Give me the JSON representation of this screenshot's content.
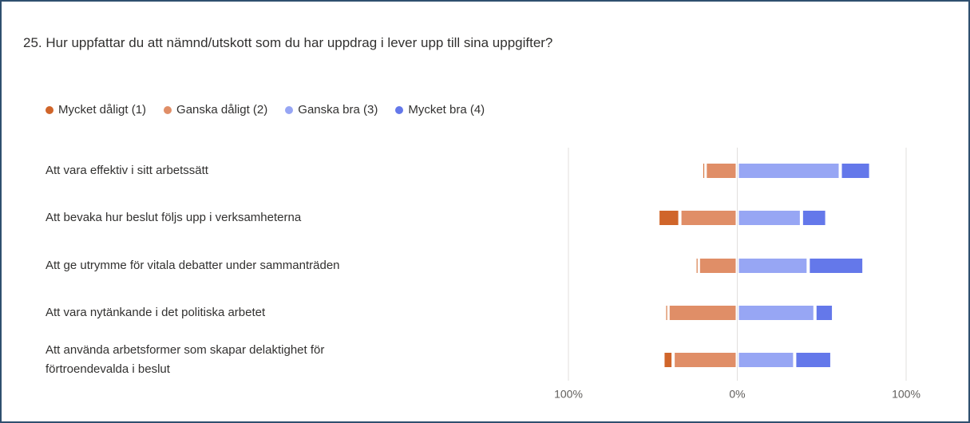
{
  "chart_data": {
    "type": "diverging-bar",
    "title": "25. Hur uppfattar du att nämnd/utskott som du har uppdrag i lever upp till sina uppgifter?",
    "categories": [
      "Att vara effektiv i sitt arbetssätt",
      "Att bevaka hur beslut följs upp i verksamheterna",
      "Att ge utrymme för vitala debatter under sammanträden",
      "Att vara nytänkande i det politiska arbetet",
      "Att använda arbetsformer som skapar delaktighet för förtroendevalda i beslut"
    ],
    "series": [
      {
        "name": "Mycket dåligt (1)",
        "color": "#d0652a",
        "side": "negative",
        "values": [
          2,
          13,
          2,
          2,
          6
        ]
      },
      {
        "name": "Ganska dåligt (2)",
        "color": "#e08e67",
        "side": "negative",
        "values": [
          19,
          34,
          23,
          41,
          38
        ]
      },
      {
        "name": "Ganska bra (3)",
        "color": "#97a6f4",
        "side": "positive",
        "values": [
          61,
          38,
          42,
          46,
          34
        ]
      },
      {
        "name": "Mycket bra (4)",
        "color": "#6478ea",
        "side": "positive",
        "values": [
          18,
          15,
          33,
          11,
          22
        ]
      }
    ],
    "xlim": [
      -100,
      100
    ],
    "xticks": [
      {
        "value": -100,
        "label": "100%"
      },
      {
        "value": 0,
        "label": "0%"
      },
      {
        "value": 100,
        "label": "100%"
      }
    ],
    "grid": true
  }
}
